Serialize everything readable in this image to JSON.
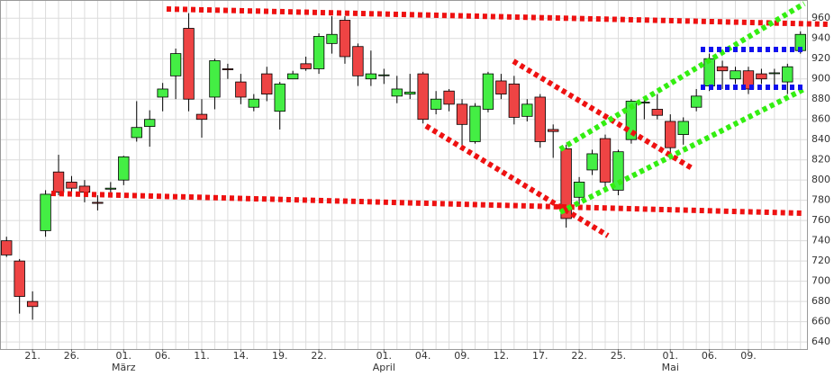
{
  "chart_data": {
    "type": "candlestick",
    "categories": [
      null,
      null,
      "21.",
      null,
      null,
      "26.",
      null,
      null,
      null,
      "01.",
      null,
      null,
      "06.",
      null,
      null,
      "11.",
      null,
      null,
      "14.",
      null,
      null,
      "19.",
      null,
      null,
      "22.",
      null,
      null,
      null,
      null,
      "01.",
      null,
      null,
      "04.",
      null,
      null,
      "09.",
      null,
      null,
      "12.",
      null,
      null,
      "17.",
      null,
      null,
      "22.",
      null,
      null,
      "25.",
      null,
      null,
      null,
      "01.",
      null,
      null,
      "06.",
      null,
      null,
      "09.",
      null,
      null,
      null,
      null
    ],
    "months": [
      null,
      null,
      null,
      null,
      null,
      null,
      null,
      null,
      null,
      "März",
      null,
      null,
      null,
      null,
      null,
      null,
      null,
      null,
      null,
      null,
      null,
      null,
      null,
      null,
      null,
      null,
      null,
      null,
      null,
      "April",
      null,
      null,
      null,
      null,
      null,
      null,
      null,
      null,
      null,
      null,
      null,
      null,
      null,
      null,
      null,
      null,
      null,
      null,
      null,
      null,
      null,
      "Mai",
      null,
      null,
      null,
      null,
      null,
      null,
      null,
      null,
      null,
      null
    ],
    "open": [
      740,
      720,
      680,
      750,
      808,
      798,
      794,
      778,
      791,
      800,
      842,
      853,
      882,
      903,
      950,
      865,
      882,
      910,
      897,
      872,
      905,
      868,
      900,
      915,
      910,
      935,
      958,
      932,
      900,
      904,
      883,
      885,
      905,
      870,
      888,
      875,
      838,
      870,
      898,
      895,
      863,
      882,
      850,
      831,
      783,
      810,
      841,
      790,
      840,
      877,
      870,
      858,
      845,
      872,
      893,
      912,
      900,
      908,
      905,
      906,
      897,
      928
    ],
    "high": [
      744,
      722,
      690,
      790,
      825,
      804,
      800,
      785,
      798,
      824,
      878,
      869,
      896,
      930,
      965,
      880,
      920,
      915,
      905,
      885,
      912,
      897,
      908,
      922,
      945,
      962,
      962,
      935,
      928,
      910,
      903,
      905,
      907,
      888,
      890,
      880,
      876,
      907,
      905,
      903,
      880,
      885,
      855,
      835,
      803,
      830,
      845,
      830,
      880,
      882,
      885,
      865,
      862,
      890,
      925,
      918,
      912,
      912,
      910,
      910,
      915,
      947
    ],
    "low": [
      724,
      668,
      662,
      744,
      785,
      784,
      778,
      770,
      786,
      795,
      838,
      833,
      868,
      880,
      868,
      842,
      870,
      900,
      875,
      868,
      878,
      850,
      900,
      908,
      905,
      925,
      915,
      893,
      893,
      895,
      876,
      880,
      856,
      865,
      868,
      833,
      836,
      867,
      880,
      855,
      858,
      832,
      822,
      753,
      775,
      805,
      790,
      785,
      836,
      860,
      860,
      826,
      835,
      868,
      888,
      890,
      895,
      885,
      895,
      890,
      885,
      925
    ],
    "close": [
      726,
      685,
      675,
      786,
      788,
      792,
      788,
      777,
      792,
      823,
      852,
      860,
      890,
      925,
      880,
      860,
      918,
      909,
      882,
      880,
      885,
      895,
      905,
      910,
      942,
      944,
      922,
      903,
      905,
      904,
      890,
      887,
      860,
      880,
      875,
      855,
      873,
      905,
      885,
      862,
      875,
      838,
      848,
      762,
      798,
      826,
      798,
      828,
      878,
      877,
      864,
      832,
      858,
      883,
      920,
      908,
      908,
      890,
      900,
      906,
      912,
      944
    ],
    "up_color": "#44ee44",
    "down_color": "#ee4444",
    "ylim": [
      633,
      978
    ],
    "yticks": [
      640,
      660,
      680,
      700,
      720,
      740,
      760,
      780,
      800,
      820,
      840,
      860,
      880,
      900,
      920,
      940,
      960
    ],
    "grid": true
  }
}
